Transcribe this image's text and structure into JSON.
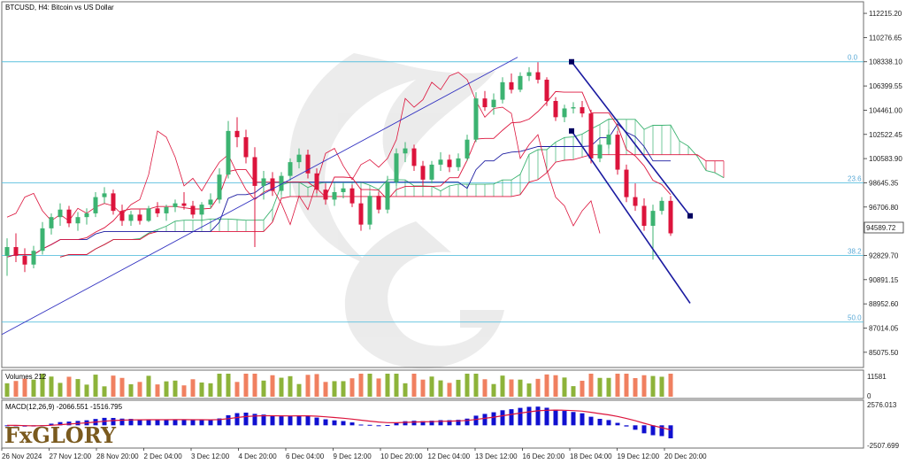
{
  "header": {
    "symbol_title": "BTCUSD, H4:  Bitcoin vs US Dollar"
  },
  "price_axis": {
    "ticks": [
      "112215.20",
      "110276.65",
      "108338.10",
      "106399.55",
      "104461.00",
      "102522.45",
      "100583.90",
      "98645.35",
      "96706.80",
      "94589.72",
      "92829.70",
      "90891.15",
      "88952.60",
      "87014.05",
      "85075.50"
    ],
    "current_price": "94589.72"
  },
  "fib_levels": [
    {
      "label": "0.0",
      "price": 108338.1
    },
    {
      "label": "23.6",
      "price": 98645.35
    },
    {
      "label": "38.2",
      "price": 92829.7
    },
    {
      "label": "50.0",
      "price": 87500
    }
  ],
  "volume_panel": {
    "label": "Volumes 212",
    "ticks": [
      "11581",
      "0"
    ]
  },
  "macd_panel": {
    "label": "MACD(12,26,9) -2066.551 -1516.795",
    "ticks": [
      "2576.013",
      "-2507.699"
    ]
  },
  "time_axis": {
    "labels": [
      "26 Nov 2024",
      "27 Nov 12:00",
      "28 Nov 20:00",
      "2 Dec 04:00",
      "3 Dec 12:00",
      "4 Dec 20:00",
      "6 Dec 04:00",
      "9 Dec 12:00",
      "10 Dec 20:00",
      "12 Dec 04:00",
      "13 Dec 12:00",
      "16 Dec 20:00",
      "18 Dec 04:00",
      "19 Dec 12:00",
      "20 Dec 20:00"
    ]
  },
  "logo": {
    "text": "FxGLORY"
  },
  "colors": {
    "bull": "#3cb371",
    "bear": "#dc143c",
    "fib": "#5bc0de",
    "channel": "#1a1aa0",
    "kijun": "#1a1aa0",
    "tenkan": "#dc143c",
    "cloud": "#3cb371",
    "macd_hist": "#1010d0",
    "macd_signal": "#dc143c",
    "vol_up": "#8db33a",
    "vol_down": "#f08060"
  },
  "chart_data": {
    "type": "candlestick",
    "symbol": "BTCUSD",
    "timeframe": "H4",
    "ylim": [
      84000,
      113000
    ],
    "candles": [
      {
        "o": 92800,
        "h": 94200,
        "l": 91200,
        "c": 93500
      },
      {
        "o": 93500,
        "h": 94600,
        "l": 92300,
        "c": 92800
      },
      {
        "o": 92800,
        "h": 93400,
        "l": 91500,
        "c": 92100
      },
      {
        "o": 92100,
        "h": 93600,
        "l": 91800,
        "c": 93200
      },
      {
        "o": 93200,
        "h": 95500,
        "l": 92900,
        "c": 95000
      },
      {
        "o": 95000,
        "h": 96200,
        "l": 94500,
        "c": 95900
      },
      {
        "o": 95900,
        "h": 97000,
        "l": 95200,
        "c": 96500
      },
      {
        "o": 96500,
        "h": 96800,
        "l": 95100,
        "c": 95400
      },
      {
        "o": 95400,
        "h": 96300,
        "l": 94800,
        "c": 95900
      },
      {
        "o": 95900,
        "h": 96600,
        "l": 95300,
        "c": 96200
      },
      {
        "o": 96200,
        "h": 97900,
        "l": 95900,
        "c": 97500
      },
      {
        "o": 97500,
        "h": 98300,
        "l": 97000,
        "c": 97800
      },
      {
        "o": 97800,
        "h": 98100,
        "l": 96100,
        "c": 96400
      },
      {
        "o": 96400,
        "h": 96900,
        "l": 95200,
        "c": 95600
      },
      {
        "o": 95600,
        "h": 96400,
        "l": 95200,
        "c": 96100
      },
      {
        "o": 96100,
        "h": 96500,
        "l": 95300,
        "c": 95600
      },
      {
        "o": 95600,
        "h": 96800,
        "l": 95500,
        "c": 96600
      },
      {
        "o": 96600,
        "h": 97100,
        "l": 95900,
        "c": 96200
      },
      {
        "o": 96200,
        "h": 96900,
        "l": 95600,
        "c": 96700
      },
      {
        "o": 96700,
        "h": 97300,
        "l": 96300,
        "c": 97000
      },
      {
        "o": 97000,
        "h": 97900,
        "l": 96500,
        "c": 96800
      },
      {
        "o": 96800,
        "h": 97200,
        "l": 95800,
        "c": 96100
      },
      {
        "o": 96100,
        "h": 97100,
        "l": 95500,
        "c": 96900
      },
      {
        "o": 96900,
        "h": 97800,
        "l": 96600,
        "c": 97300
      },
      {
        "o": 97300,
        "h": 99800,
        "l": 97000,
        "c": 99300
      },
      {
        "o": 99300,
        "h": 103600,
        "l": 99000,
        "c": 102800
      },
      {
        "o": 102800,
        "h": 103900,
        "l": 101500,
        "c": 102300
      },
      {
        "o": 102300,
        "h": 102900,
        "l": 100200,
        "c": 100700
      },
      {
        "o": 100700,
        "h": 101500,
        "l": 93500,
        "c": 98400
      },
      {
        "o": 98400,
        "h": 99600,
        "l": 97300,
        "c": 99000
      },
      {
        "o": 99000,
        "h": 99500,
        "l": 97600,
        "c": 98000
      },
      {
        "o": 98000,
        "h": 99500,
        "l": 97700,
        "c": 99200
      },
      {
        "o": 99200,
        "h": 100600,
        "l": 98800,
        "c": 100300
      },
      {
        "o": 100300,
        "h": 101400,
        "l": 99800,
        "c": 100900
      },
      {
        "o": 100900,
        "h": 101300,
        "l": 99000,
        "c": 99400
      },
      {
        "o": 99400,
        "h": 99800,
        "l": 97800,
        "c": 98100
      },
      {
        "o": 98100,
        "h": 98600,
        "l": 96900,
        "c": 97300
      },
      {
        "o": 97300,
        "h": 98300,
        "l": 96800,
        "c": 97900
      },
      {
        "o": 97900,
        "h": 98600,
        "l": 97400,
        "c": 98200
      },
      {
        "o": 98200,
        "h": 98500,
        "l": 96700,
        "c": 97000
      },
      {
        "o": 97000,
        "h": 98200,
        "l": 94800,
        "c": 95300
      },
      {
        "o": 95300,
        "h": 97900,
        "l": 94900,
        "c": 97600
      },
      {
        "o": 97600,
        "h": 97900,
        "l": 96200,
        "c": 96500
      },
      {
        "o": 96500,
        "h": 99200,
        "l": 96200,
        "c": 98700
      },
      {
        "o": 98700,
        "h": 101400,
        "l": 98400,
        "c": 101000
      },
      {
        "o": 101000,
        "h": 101900,
        "l": 100300,
        "c": 101400
      },
      {
        "o": 101400,
        "h": 101700,
        "l": 99600,
        "c": 100000
      },
      {
        "o": 100000,
        "h": 100400,
        "l": 98400,
        "c": 98900
      },
      {
        "o": 98900,
        "h": 100400,
        "l": 98600,
        "c": 100100
      },
      {
        "o": 100100,
        "h": 101100,
        "l": 99600,
        "c": 100500
      },
      {
        "o": 100500,
        "h": 100900,
        "l": 99500,
        "c": 99900
      },
      {
        "o": 99900,
        "h": 101000,
        "l": 99600,
        "c": 100600
      },
      {
        "o": 100600,
        "h": 102500,
        "l": 100400,
        "c": 102100
      },
      {
        "o": 102100,
        "h": 105900,
        "l": 101900,
        "c": 105400
      },
      {
        "o": 105400,
        "h": 106000,
        "l": 104400,
        "c": 104700
      },
      {
        "o": 104700,
        "h": 105800,
        "l": 104100,
        "c": 105300
      },
      {
        "o": 105300,
        "h": 107100,
        "l": 105000,
        "c": 106700
      },
      {
        "o": 106700,
        "h": 107400,
        "l": 105800,
        "c": 106100
      },
      {
        "o": 106100,
        "h": 107500,
        "l": 105900,
        "c": 107200
      },
      {
        "o": 107200,
        "h": 107900,
        "l": 106800,
        "c": 107500
      },
      {
        "o": 107500,
        "h": 108300,
        "l": 106600,
        "c": 106900
      },
      {
        "o": 106900,
        "h": 107100,
        "l": 104800,
        "c": 105200
      },
      {
        "o": 105200,
        "h": 105500,
        "l": 103600,
        "c": 103900
      },
      {
        "o": 103900,
        "h": 104900,
        "l": 103500,
        "c": 104600
      },
      {
        "o": 104600,
        "h": 105100,
        "l": 104200,
        "c": 104700
      },
      {
        "o": 104700,
        "h": 105200,
        "l": 103900,
        "c": 104200
      },
      {
        "o": 104200,
        "h": 104500,
        "l": 100200,
        "c": 100600
      },
      {
        "o": 100600,
        "h": 102100,
        "l": 100300,
        "c": 101700
      },
      {
        "o": 101700,
        "h": 102900,
        "l": 101400,
        "c": 102500
      },
      {
        "o": 102500,
        "h": 102800,
        "l": 99300,
        "c": 99700
      },
      {
        "o": 99700,
        "h": 100100,
        "l": 97100,
        "c": 97500
      },
      {
        "o": 97500,
        "h": 98600,
        "l": 96400,
        "c": 96800
      },
      {
        "o": 96800,
        "h": 97400,
        "l": 94800,
        "c": 95200
      },
      {
        "o": 95200,
        "h": 96900,
        "l": 92500,
        "c": 96400
      },
      {
        "o": 96400,
        "h": 97500,
        "l": 96100,
        "c": 97200
      },
      {
        "o": 97200,
        "h": 97600,
        "l": 94400,
        "c": 94600
      }
    ]
  }
}
